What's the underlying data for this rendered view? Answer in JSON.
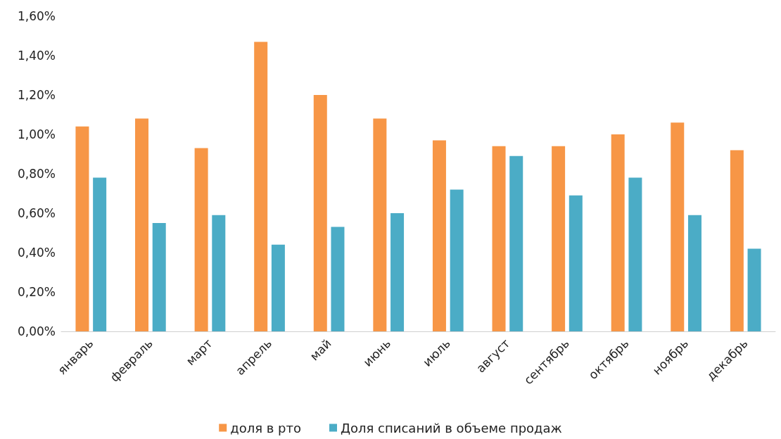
{
  "chart_data": {
    "type": "bar",
    "categories": [
      "январь",
      "февраль",
      "март",
      "апрель",
      "май",
      "июнь",
      "июль",
      "август",
      "сентябрь",
      "октябрь",
      "ноябрь",
      "декабрь"
    ],
    "series": [
      {
        "name": "доля в рто",
        "color": "#f79646",
        "values": [
          1.04,
          1.08,
          0.93,
          1.47,
          1.2,
          1.08,
          0.97,
          0.94,
          0.94,
          1.0,
          1.06,
          0.92
        ]
      },
      {
        "name": "Доля списаний в объеме продаж",
        "color": "#4bacc6",
        "values": [
          0.78,
          0.55,
          0.59,
          0.44,
          0.53,
          0.6,
          0.72,
          0.89,
          0.69,
          0.78,
          0.59,
          0.42
        ]
      }
    ],
    "ylim": [
      0,
      1.6
    ],
    "yticks": [
      {
        "value": 0,
        "label": "0,00%"
      },
      {
        "value": 0.2,
        "label": "0,20%"
      },
      {
        "value": 0.4,
        "label": "0,40%"
      },
      {
        "value": 0.6,
        "label": "0,60%"
      },
      {
        "value": 0.8,
        "label": "0,80%"
      },
      {
        "value": 1.0,
        "label": "1,00%"
      },
      {
        "value": 1.2,
        "label": "1,20%"
      },
      {
        "value": 1.4,
        "label": "1,40%"
      },
      {
        "value": 1.6,
        "label": "1,60%"
      }
    ],
    "grid": false,
    "legend": "bottom"
  }
}
